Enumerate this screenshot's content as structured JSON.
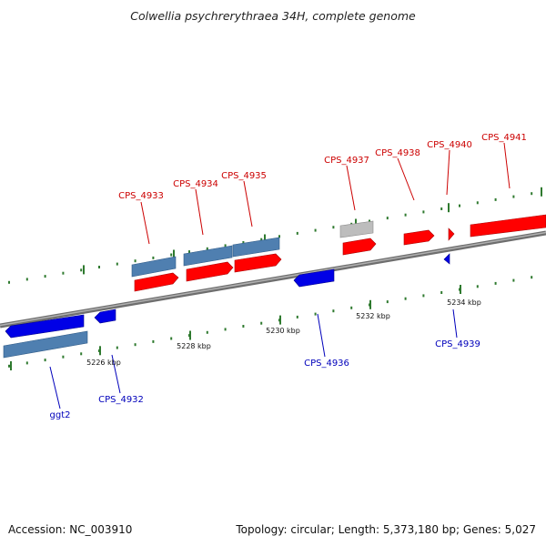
{
  "title": "Colwellia psychrerythraea 34H, complete genome",
  "footer": {
    "accession": "Accession: NC_003910",
    "summary": "Topology: circular; Length: 5,373,180 bp; Genes: 5,027"
  },
  "colors": {
    "forward_cds": "#ff0000",
    "reverse_cds": "#0000e6",
    "gene_bar": "#4f7fb0",
    "rna_gray": "#bdbdbd",
    "backbone": "#7a7a7a",
    "tick": "#2f7a2f",
    "forward_label": "#cc0000",
    "reverse_label": "#0000bb"
  },
  "axis": {
    "ticks": [
      {
        "label": "5226 kbp"
      },
      {
        "label": "5228 kbp"
      },
      {
        "label": "5230 kbp"
      },
      {
        "label": "5232 kbp"
      },
      {
        "label": "5234 kbp"
      }
    ]
  },
  "forward_labels": [
    "CPS_4933",
    "CPS_4934",
    "CPS_4935",
    "CPS_4937",
    "CPS_4938",
    "CPS_4940",
    "CPS_4941"
  ],
  "reverse_labels": [
    "ggt2",
    "CPS_4932",
    "CPS_4936",
    "CPS_4939"
  ]
}
